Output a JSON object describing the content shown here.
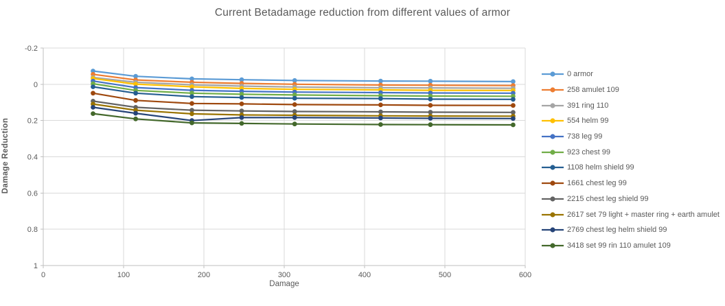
{
  "chart_data": {
    "type": "line",
    "title": "Current Betadamage reduction from different values of armor",
    "xlabel": "Damage",
    "ylabel": "Damage Reduction",
    "xlim": [
      0,
      600
    ],
    "ylim": [
      -0.2,
      1
    ],
    "y_axis_reversed_note": "top of axis is -0.2, bottom is 1",
    "x_ticks": [
      0,
      100,
      200,
      300,
      400,
      500,
      600
    ],
    "y_ticks": [
      -0.2,
      0,
      0.2,
      0.4,
      0.6,
      0.8,
      1
    ],
    "grid": true,
    "legend_position": "right",
    "x": [
      62,
      115,
      185,
      247,
      313,
      420,
      482,
      585
    ],
    "series": [
      {
        "name": "0 armor",
        "color": "#5B9BD5",
        "values": [
          -0.073,
          -0.044,
          -0.03,
          -0.025,
          -0.021,
          -0.018,
          -0.017,
          -0.015
        ]
      },
      {
        "name": "258 amulet 109",
        "color": "#ED7D31",
        "values": [
          -0.055,
          -0.024,
          -0.011,
          -0.005,
          0.0,
          0.004,
          0.005,
          0.007
        ]
      },
      {
        "name": "391 ring 110",
        "color": "#A5A5A5",
        "values": [
          -0.038,
          -0.011,
          0.003,
          0.01,
          0.015,
          0.019,
          0.02,
          0.022
        ]
      },
      {
        "name": "554 helm 99",
        "color": "#FFC000",
        "values": [
          -0.032,
          -0.001,
          0.014,
          0.023,
          0.028,
          0.031,
          0.033,
          0.034
        ]
      },
      {
        "name": "738 leg 99",
        "color": "#4472C4",
        "values": [
          -0.018,
          0.018,
          0.033,
          0.039,
          0.043,
          0.046,
          0.048,
          0.049
        ]
      },
      {
        "name": "923 chest 99",
        "color": "#70AD47",
        "values": [
          -0.003,
          0.034,
          0.049,
          0.055,
          0.059,
          0.063,
          0.065,
          0.066
        ]
      },
      {
        "name": "1108 helm shield 99",
        "color": "#255E91",
        "values": [
          0.014,
          0.049,
          0.068,
          0.073,
          0.077,
          0.079,
          0.082,
          0.083
        ]
      },
      {
        "name": "1661 chest leg 99",
        "color": "#9E480E",
        "values": [
          0.049,
          0.089,
          0.106,
          0.108,
          0.112,
          0.114,
          0.116,
          0.117
        ]
      },
      {
        "name": "2215 chest leg shield 99",
        "color": "#636363",
        "values": [
          0.093,
          0.127,
          0.143,
          0.147,
          0.15,
          0.152,
          0.154,
          0.155
        ]
      },
      {
        "name": "2617 set 79 light + master ring + earth amulet",
        "color": "#997300",
        "values": [
          0.109,
          0.143,
          0.163,
          0.169,
          0.171,
          0.174,
          0.175,
          0.176
        ]
      },
      {
        "name": "2769 chest leg helm shield 99",
        "color": "#264478",
        "values": [
          0.127,
          0.16,
          0.2,
          0.184,
          0.184,
          0.186,
          0.188,
          0.189
        ]
      },
      {
        "name": "3418 set 99 rin 110 amulet 109",
        "color": "#43682B",
        "values": [
          0.162,
          0.191,
          0.213,
          0.216,
          0.219,
          0.222,
          0.223,
          0.224
        ]
      }
    ]
  },
  "style_colors": {
    "gridline": "#D9D9D9",
    "axis_line": "#BFBFBF",
    "text": "#595959"
  }
}
